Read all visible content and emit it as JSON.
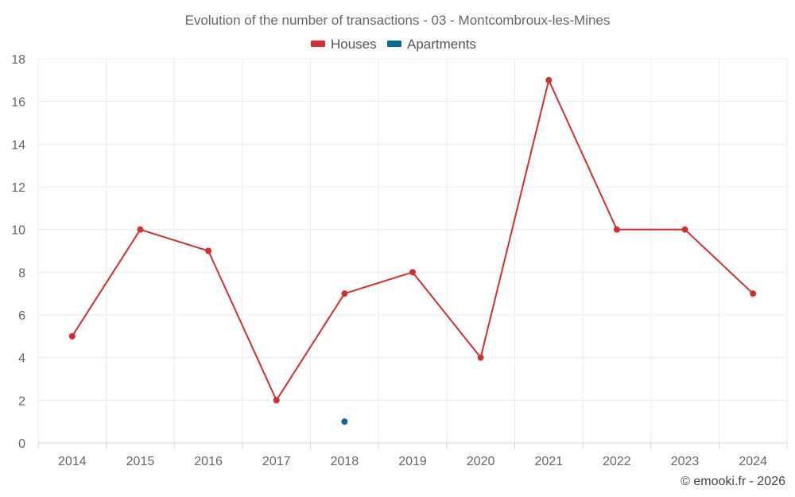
{
  "chart_data": {
    "type": "line",
    "title": "Evolution of the number of transactions - 03 - Montcombroux-les-Mines",
    "categories": [
      "2014",
      "2015",
      "2016",
      "2017",
      "2018",
      "2019",
      "2020",
      "2021",
      "2022",
      "2023",
      "2024"
    ],
    "series": [
      {
        "name": "Houses",
        "color": "#d32f2f",
        "values": [
          5,
          10,
          9,
          2,
          7,
          8,
          4,
          17,
          10,
          10,
          7
        ]
      },
      {
        "name": "Apartments",
        "color": "#0a6aa1",
        "values": [
          null,
          null,
          null,
          null,
          1,
          null,
          null,
          null,
          null,
          null,
          null
        ]
      }
    ],
    "y_ticks": [
      "0",
      "2",
      "4",
      "6",
      "8",
      "10",
      "12",
      "14",
      "16",
      "18"
    ],
    "ylim": [
      0,
      18
    ],
    "grid": true,
    "legend_position": "top-center",
    "credit": "© emooki.fr - 2026"
  }
}
